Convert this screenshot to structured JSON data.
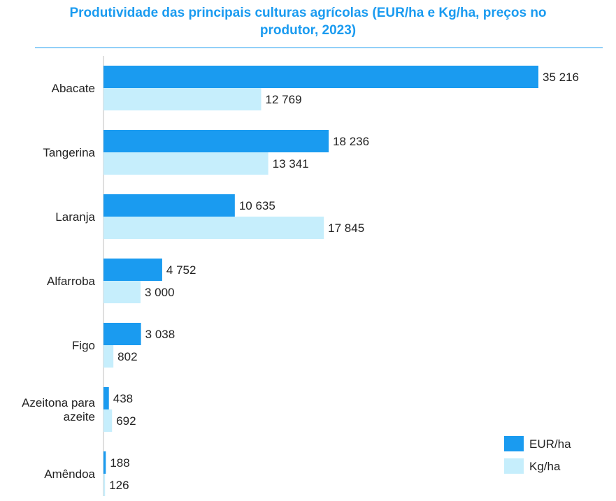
{
  "chart_data": {
    "type": "bar",
    "orientation": "horizontal",
    "title_lines": [
      "Produtividade das principais culturas agrícolas (EUR/ha e Kg/ha, preços no",
      "produtor, 2023)"
    ],
    "categories": [
      [
        "Abacate"
      ],
      [
        "Tangerina"
      ],
      [
        "Laranja"
      ],
      [
        "Alfarroba"
      ],
      [
        "Figo"
      ],
      [
        "Azeitona para",
        "azeite"
      ],
      [
        "Amêndoa"
      ]
    ],
    "series": [
      {
        "name": "EUR/ha",
        "color": "#1a9bf0",
        "values": [
          35216,
          18236,
          10635,
          4752,
          3038,
          438,
          188
        ],
        "labels": [
          "35 216",
          "18 236",
          "10 635",
          "4 752",
          "3 038",
          "438",
          "188"
        ]
      },
      {
        "name": "Kg/ha",
        "color": "#c6eefc",
        "values": [
          12769,
          13341,
          17845,
          3000,
          802,
          692,
          126
        ],
        "labels": [
          "12 769",
          "13 341",
          "17 845",
          "3 000",
          "802",
          "692",
          "126"
        ]
      }
    ],
    "xlim": [
      0,
      35216
    ],
    "grid": false,
    "legend_position": "bottom-right"
  }
}
